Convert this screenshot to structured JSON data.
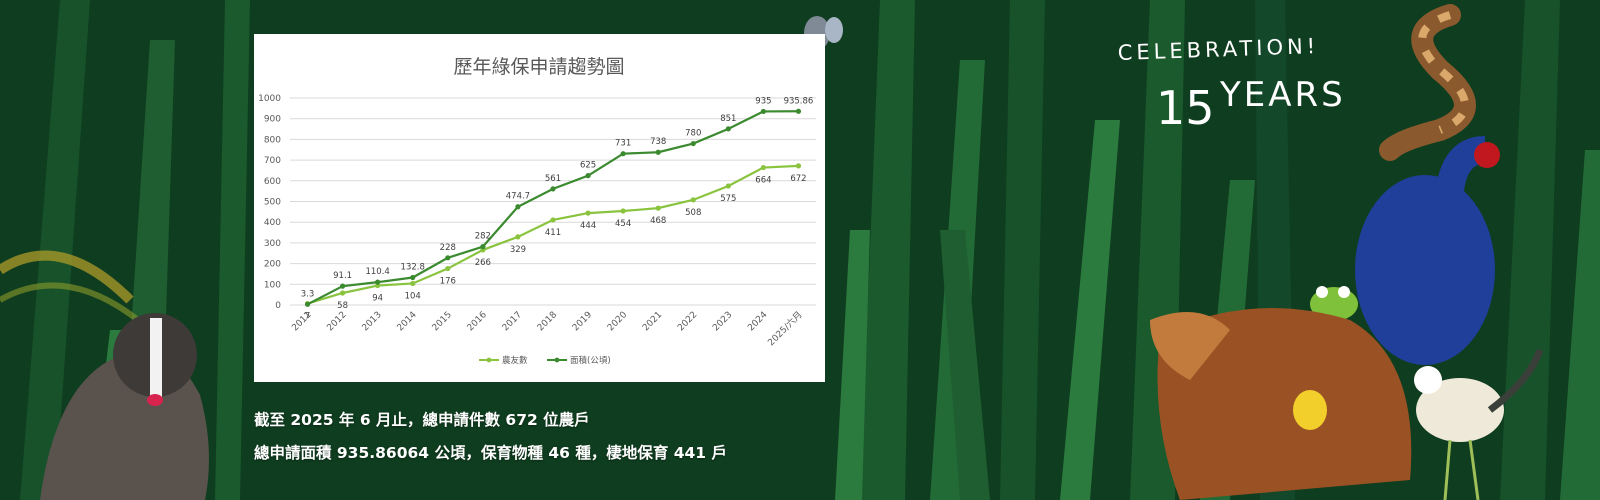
{
  "banner": {
    "celebration_line1": "CELEBRATION!",
    "celebration_number": "15",
    "celebration_line2": "YEARS",
    "caption_line1": "截至 2025 年 6 月止，總申請件數 672 位農戶",
    "caption_line2": "總申請面積 935.86064 公頃，保育物種 46 種，棲地保育 441 戶",
    "illustration_names": [
      "badger-illustration",
      "butterfly-illustration",
      "snake-illustration",
      "swamphen-illustration",
      "frog-illustration",
      "pangolin-illustration",
      "beetle-illustration",
      "jacana-illustration",
      "grass-blades-illustration"
    ],
    "colors": {
      "background_dark": "#0f3d1f",
      "background_mid": "#17522a",
      "leaf_light": "#2b7a3e",
      "series_farmers": "#8ac43f",
      "series_area": "#3b8a2f",
      "text_white": "#ffffff"
    }
  },
  "chart_data": {
    "type": "line",
    "title": "歷年綠保申請趨勢圖",
    "categories": [
      "2011",
      "2012",
      "2013",
      "2014",
      "2015",
      "2016",
      "2017",
      "2018",
      "2019",
      "2020",
      "2021",
      "2022",
      "2023",
      "2024",
      "2025/六月"
    ],
    "series": [
      {
        "name": "農友數",
        "color": "#8ac43f",
        "values": [
          7,
          58,
          94,
          104,
          176,
          266,
          329,
          411,
          444,
          454,
          468,
          508,
          575,
          664,
          672
        ],
        "labels": [
          "7",
          "58",
          "94",
          "104",
          "176",
          "266",
          "329",
          "411",
          "444",
          "454",
          "468",
          "508",
          "575",
          "664",
          "672"
        ],
        "label_position": "below"
      },
      {
        "name": "面積(公頃)",
        "color": "#3b8a2f",
        "values": [
          3.3,
          91.1,
          110.4,
          132.8,
          228,
          282,
          474.7,
          561,
          625,
          731,
          738,
          780,
          851,
          935,
          935.86
        ],
        "labels": [
          "3.3",
          "91.1",
          "110.4",
          "132.8",
          "228",
          "282",
          "474.7",
          "561",
          "625",
          "731",
          "738",
          "780",
          "851",
          "935",
          "935.86"
        ],
        "label_position": "above"
      }
    ],
    "y_ticks": [
      "0",
      "100",
      "200",
      "300",
      "400",
      "500",
      "600",
      "700",
      "800",
      "900",
      "1000"
    ],
    "ylim": [
      0,
      1000
    ],
    "grid": true,
    "legend": "bottom-center"
  }
}
